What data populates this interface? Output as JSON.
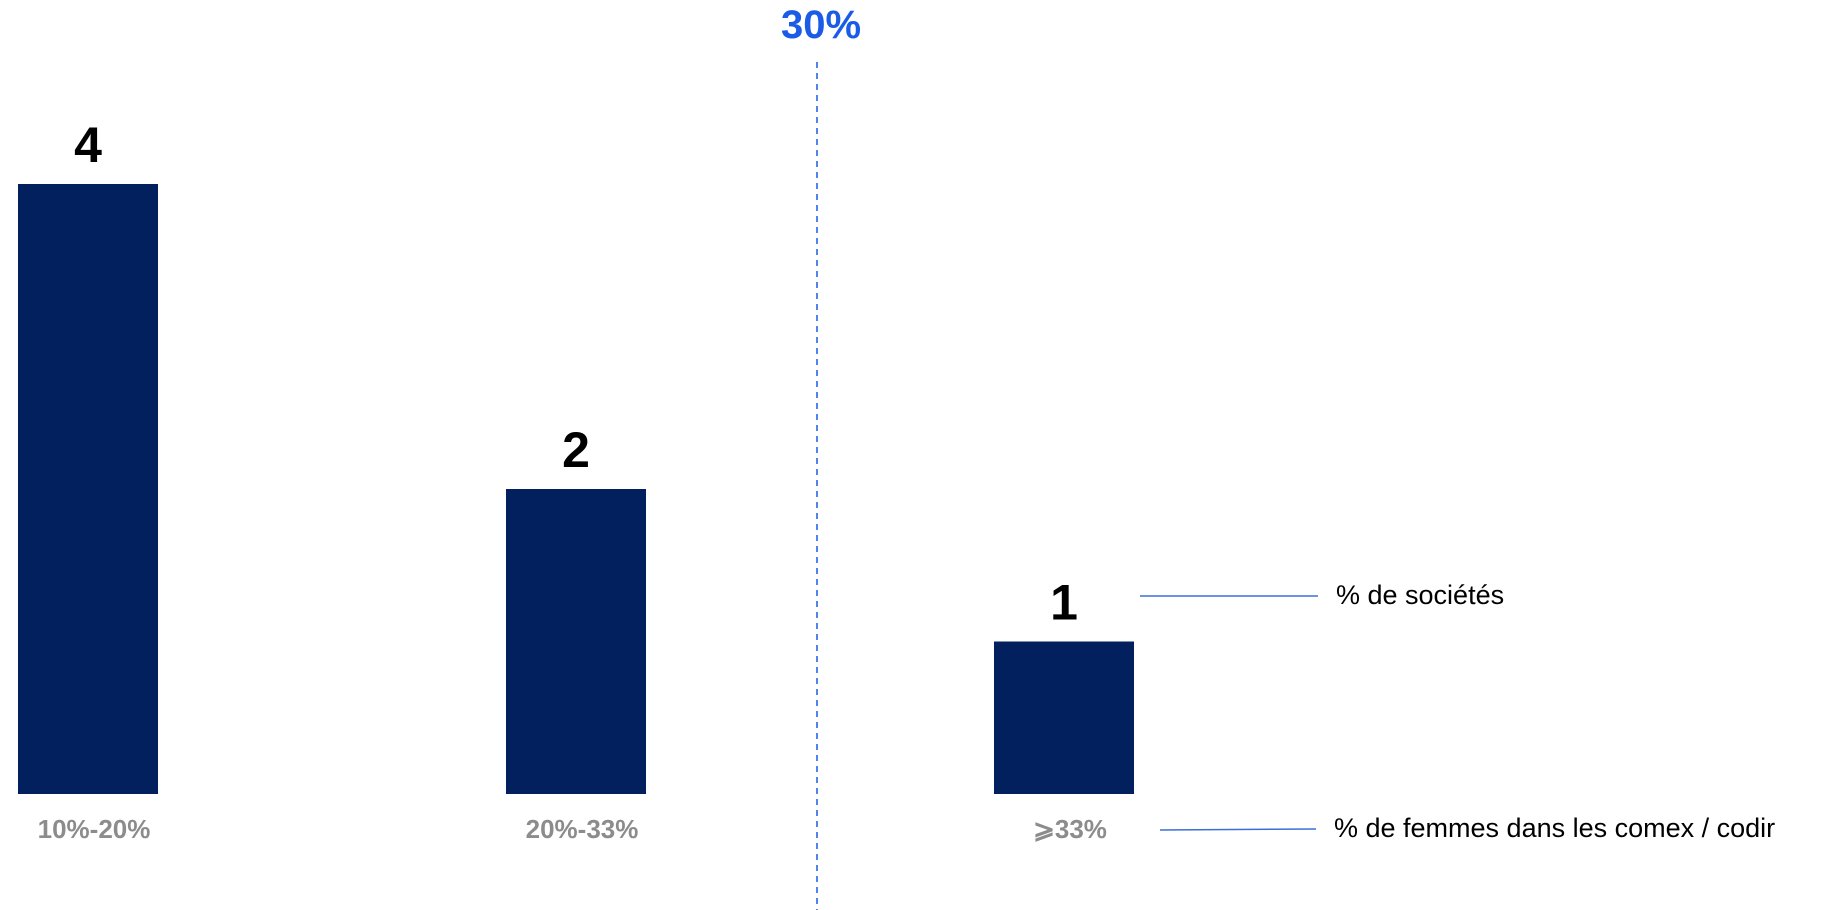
{
  "chart_data": {
    "type": "bar",
    "categories": [
      "10%-20%",
      "20%-33%",
      "⩾33%"
    ],
    "values": [
      4,
      2,
      1
    ],
    "threshold": {
      "label": "30%",
      "color": "#1a5ce6"
    },
    "bar_color": "#021f5e",
    "annotations": {
      "values_label": "% de sociétés",
      "categories_label": "% de femmes dans les comex / codir"
    },
    "grid": false,
    "ylim": [
      0,
      4
    ]
  }
}
